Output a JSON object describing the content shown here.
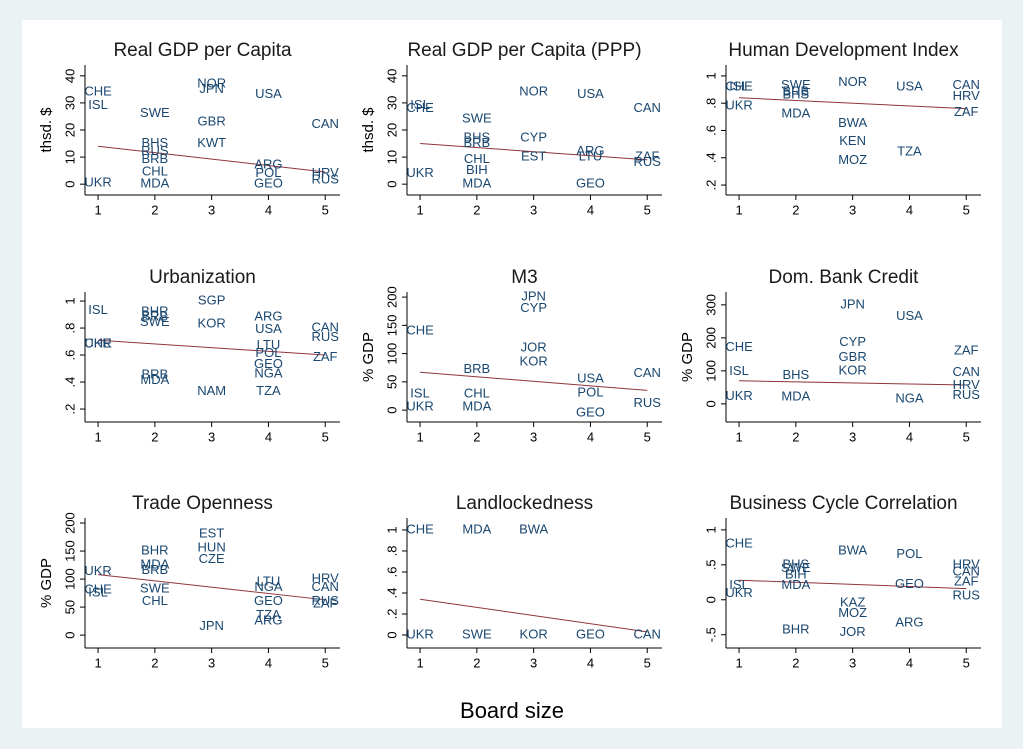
{
  "figure": {
    "xlabel": "Board size"
  },
  "chart_data": [
    {
      "type": "scatter",
      "title": "Real GDP per Capita",
      "ylabel": "thsd. $",
      "color": "#1a476f",
      "xlim": [
        0.77,
        5.26
      ],
      "ylim": [
        -4,
        44
      ],
      "xticks": [
        1,
        2,
        3,
        4,
        5
      ],
      "yticks": [
        0,
        10,
        20,
        30,
        40
      ],
      "labels": [
        "CHE",
        "ISL",
        "UKR",
        "SWE",
        "BHS",
        "RUS",
        "BRB",
        "CHL",
        "MDA",
        "NOR",
        "JPN",
        "GBR",
        "KWT",
        "USA",
        "ARG",
        "POL",
        "GEO",
        "CAN",
        "HRV",
        "RUS"
      ],
      "x": [
        1,
        1,
        1,
        2,
        2,
        2,
        2,
        2,
        2,
        3,
        3,
        3,
        3,
        4,
        4,
        4,
        4,
        5,
        5,
        5
      ],
      "values": [
        34,
        29,
        0.5,
        26,
        15,
        12,
        9,
        4.5,
        0,
        37,
        35,
        23,
        15,
        33,
        7,
        4,
        0,
        22,
        4,
        1.5
      ],
      "fit": {
        "color": "#90353b",
        "x": [
          1,
          5
        ],
        "values": [
          14,
          4.5
        ]
      }
    },
    {
      "type": "scatter",
      "title": "Real GDP per Capita (PPP)",
      "ylabel": "thsd. $",
      "color": "#1a476f",
      "xlim": [
        0.77,
        5.26
      ],
      "ylim": [
        -4,
        44
      ],
      "xticks": [
        1,
        2,
        3,
        4,
        5
      ],
      "yticks": [
        0,
        10,
        20,
        30,
        40
      ],
      "labels": [
        "ISL",
        "CHE",
        "UKR",
        "SWE",
        "BHS",
        "BRB",
        "CHL",
        "BIH",
        "MDA",
        "NOR",
        "CYP",
        "EST",
        "USA",
        "ARG",
        "LTU",
        "GEO",
        "CAN",
        "ZAF",
        "RUS"
      ],
      "x": [
        1,
        1,
        1,
        2,
        2,
        2,
        2,
        2,
        2,
        3,
        3,
        3,
        4,
        4,
        4,
        4,
        5,
        5,
        5
      ],
      "values": [
        29,
        28,
        4,
        24,
        17,
        15,
        9,
        5,
        0,
        34,
        17,
        10,
        33,
        12,
        10,
        0,
        28,
        10,
        8
      ],
      "fit": {
        "color": "#90353b",
        "x": [
          1,
          5
        ],
        "values": [
          15,
          9
        ]
      }
    },
    {
      "type": "scatter",
      "title": "Human Development Index",
      "color": "#1a476f",
      "xlim": [
        0.77,
        5.26
      ],
      "ylim": [
        0.127,
        1.08
      ],
      "xticks": [
        1,
        2,
        3,
        4,
        5
      ],
      "yticks": [
        {
          "value": 0.2,
          "label": ".2"
        },
        {
          "value": 0.4,
          "label": ".4"
        },
        {
          "value": 0.6,
          "label": ".6"
        },
        {
          "value": 0.8,
          "label": ".8"
        },
        1
      ],
      "labels": [
        "CHE",
        "ISL",
        "UKR",
        "SWE",
        "BRB",
        "BHS",
        "MDA",
        "NOR",
        "BWA",
        "KEN",
        "MOZ",
        "USA",
        "TZA",
        "CAN",
        "HRV",
        "ZAF"
      ],
      "x": [
        1,
        1,
        1,
        2,
        2,
        2,
        2,
        3,
        3,
        3,
        3,
        4,
        4,
        5,
        5,
        5
      ],
      "values": [
        0.92,
        0.92,
        0.78,
        0.93,
        0.88,
        0.86,
        0.72,
        0.95,
        0.65,
        0.52,
        0.38,
        0.92,
        0.44,
        0.93,
        0.85,
        0.73
      ],
      "fit": {
        "color": "#90353b",
        "x": [
          1,
          5
        ],
        "values": [
          0.84,
          0.76
        ]
      }
    },
    {
      "type": "scatter",
      "title": "Urbanization",
      "color": "#1a476f",
      "xlim": [
        0.77,
        5.26
      ],
      "ylim": [
        0.104,
        1.067
      ],
      "xticks": [
        1,
        2,
        3,
        4,
        5
      ],
      "yticks": [
        {
          "value": 0.2,
          "label": ".2"
        },
        {
          "value": 0.4,
          "label": ".4"
        },
        {
          "value": 0.6,
          "label": ".6"
        },
        {
          "value": 0.8,
          "label": ".8"
        },
        1
      ],
      "labels": [
        "ISL",
        "CHE",
        "UKR",
        "BHR",
        "BRB",
        "SWE",
        "BRB",
        "MDA",
        "SGP",
        "KOR",
        "NAM",
        "ARG",
        "USA",
        "LTU",
        "POL",
        "GEO",
        "NGA",
        "TZA",
        "CAN",
        "RUS",
        "ZAF"
      ],
      "x": [
        1,
        1,
        1,
        2,
        2,
        2,
        2,
        2,
        3,
        3,
        3,
        4,
        4,
        4,
        4,
        4,
        4,
        4,
        5,
        5,
        5
      ],
      "values": [
        0.93,
        0.68,
        0.68,
        0.92,
        0.88,
        0.84,
        0.45,
        0.41,
        1.0,
        0.83,
        0.33,
        0.88,
        0.79,
        0.67,
        0.61,
        0.53,
        0.46,
        0.33,
        0.8,
        0.73,
        0.58
      ],
      "fit": {
        "color": "#90353b",
        "x": [
          1,
          5
        ],
        "values": [
          0.71,
          0.6
        ]
      }
    },
    {
      "type": "scatter",
      "title": "M3",
      "ylabel": "% GDP",
      "color": "#1a476f",
      "xlim": [
        0.77,
        5.26
      ],
      "ylim": [
        -21,
        209
      ],
      "xticks": [
        1,
        2,
        3,
        4,
        5
      ],
      "yticks": [
        0,
        50,
        100,
        150,
        200
      ],
      "labels": [
        "CHE",
        "ISL",
        "UKR",
        "BRB",
        "CHL",
        "MDA",
        "JPN",
        "CYP",
        "JOR",
        "KOR",
        "USA",
        "POL",
        "GEO",
        "CAN",
        "RUS"
      ],
      "x": [
        1,
        1,
        1,
        2,
        2,
        2,
        3,
        3,
        3,
        3,
        4,
        4,
        4,
        5,
        5
      ],
      "values": [
        140,
        28,
        5,
        72,
        28,
        5,
        200,
        180,
        110,
        85,
        55,
        30,
        -5,
        65,
        12
      ],
      "fit": {
        "color": "#90353b",
        "x": [
          1,
          5
        ],
        "values": [
          67,
          35
        ]
      }
    },
    {
      "type": "scatter",
      "title": "Dom. Bank Credit",
      "ylabel": "% GDP",
      "color": "#1a476f",
      "xlim": [
        0.77,
        5.26
      ],
      "ylim": [
        -55,
        339
      ],
      "xticks": [
        1,
        2,
        3,
        4,
        5
      ],
      "yticks": [
        0,
        100,
        200,
        300
      ],
      "labels": [
        "CHE",
        "ISL",
        "UKR",
        "BHS",
        "MDA",
        "JPN",
        "CYP",
        "GBR",
        "KOR",
        "USA",
        "NGA",
        "ZAF",
        "CAN",
        "HRV",
        "RUS"
      ],
      "x": [
        1,
        1,
        1,
        2,
        2,
        3,
        3,
        3,
        3,
        4,
        4,
        5,
        5,
        5,
        5
      ],
      "values": [
        170,
        98,
        22,
        85,
        20,
        300,
        185,
        140,
        100,
        265,
        15,
        160,
        95,
        55,
        25
      ],
      "fit": {
        "color": "#90353b",
        "x": [
          1,
          5
        ],
        "values": [
          70,
          57
        ]
      }
    },
    {
      "type": "scatter",
      "title": "Trade Openness",
      "ylabel": "% GDP",
      "color": "#1a476f",
      "xlim": [
        0.77,
        5.26
      ],
      "ylim": [
        -23,
        209
      ],
      "xticks": [
        1,
        2,
        3,
        4,
        5
      ],
      "yticks": [
        0,
        50,
        100,
        150,
        200
      ],
      "labels": [
        "UKR",
        "CHE",
        "ISL",
        "BHR",
        "MDA",
        "BRB",
        "SWE",
        "CHL",
        "EST",
        "HUN",
        "CZE",
        "JPN",
        "LTU",
        "NGA",
        "GEO",
        "TZA",
        "ARG",
        "HRV",
        "CAN",
        "RUS",
        "ZAF"
      ],
      "x": [
        1,
        1,
        1,
        2,
        2,
        2,
        2,
        2,
        3,
        3,
        3,
        3,
        4,
        4,
        4,
        4,
        4,
        5,
        5,
        5,
        5
      ],
      "values": [
        113,
        80,
        75,
        150,
        125,
        115,
        82,
        60,
        180,
        155,
        135,
        15,
        95,
        85,
        60,
        35,
        25,
        100,
        85,
        60,
        55
      ],
      "fit": {
        "color": "#90353b",
        "x": [
          1,
          5
        ],
        "values": [
          108,
          63
        ]
      }
    },
    {
      "type": "scatter",
      "title": "Landlockedness",
      "color": "#1a476f",
      "xlim": [
        0.77,
        5.26
      ],
      "ylim": [
        -0.124,
        1.114
      ],
      "xticks": [
        1,
        2,
        3,
        4,
        5
      ],
      "yticks": [
        0,
        {
          "value": 0.2,
          "label": ".2"
        },
        {
          "value": 0.4,
          "label": ".4"
        },
        {
          "value": 0.6,
          "label": ".6"
        },
        {
          "value": 0.8,
          "label": ".8"
        },
        1
      ],
      "labels": [
        "CHE",
        "UKR",
        "MDA",
        "SWE",
        "BWA",
        "KOR",
        "GEO",
        "CAN"
      ],
      "x": [
        1,
        1,
        2,
        2,
        3,
        3,
        4,
        5
      ],
      "values": [
        1,
        0,
        1,
        0,
        1,
        0,
        0,
        0
      ],
      "fit": {
        "color": "#90353b",
        "x": [
          1,
          5
        ],
        "values": [
          0.34,
          0.03
        ]
      }
    },
    {
      "type": "scatter",
      "title": "Business Cycle Correlation",
      "color": "#1a476f",
      "xlim": [
        0.77,
        5.26
      ],
      "ylim": [
        -0.69,
        1.17
      ],
      "xticks": [
        1,
        2,
        3,
        4,
        5
      ],
      "yticks": [
        {
          "value": -0.5,
          "label": "-.5"
        },
        0,
        {
          "value": 0.5,
          "label": ".5"
        },
        1
      ],
      "labels": [
        "CHE",
        "ISL",
        "UKR",
        "BHS",
        "SWE",
        "BIH",
        "MDA",
        "BHR",
        "BWA",
        "KAZ",
        "MOZ",
        "JOR",
        "POL",
        "GEO",
        "ARG",
        "HRV",
        "CAN",
        "ZAF",
        "RUS"
      ],
      "x": [
        1,
        1,
        1,
        2,
        2,
        2,
        2,
        2,
        3,
        3,
        3,
        3,
        4,
        4,
        4,
        5,
        5,
        5,
        5
      ],
      "values": [
        0.8,
        0.2,
        0.09,
        0.5,
        0.45,
        0.35,
        0.2,
        -0.43,
        0.7,
        -0.05,
        -0.2,
        -0.47,
        0.65,
        0.22,
        -0.33,
        0.5,
        0.4,
        0.25,
        0.05
      ],
      "fit": {
        "color": "#90353b",
        "x": [
          1,
          5
        ],
        "values": [
          0.28,
          0.16
        ]
      }
    }
  ]
}
